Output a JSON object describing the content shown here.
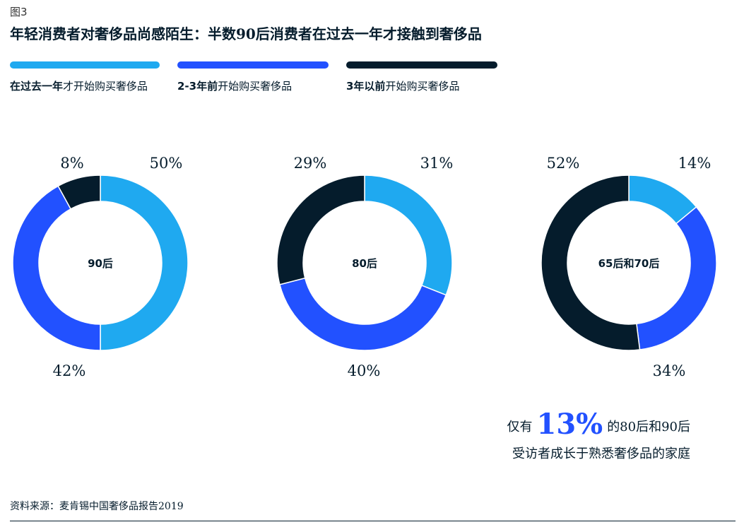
{
  "figure_label": "图3",
  "title": "年轻消费者对奢侈品尚感陌生：半数90后消费者在过去一年才接触到奢侈品",
  "legend": [
    {
      "bold": "在过去一年",
      "rest": "才开始购买奢侈品",
      "color": "#1fa9f0"
    },
    {
      "bold": "2-3年前",
      "rest": "开始购买奢侈品",
      "color": "#2251ff"
    },
    {
      "bold": "3年以前",
      "rest": "开始购买奢侈品",
      "color": "#051c2c"
    }
  ],
  "chart_data": [
    {
      "type": "pie",
      "center_label": "90后",
      "series": [
        {
          "name": "在过去一年才开始购买奢侈品",
          "value": 50,
          "label": "50%"
        },
        {
          "name": "2-3年前开始购买奢侈品",
          "value": 42,
          "label": "42%"
        },
        {
          "name": "3年以前开始购买奢侈品",
          "value": 8,
          "label": "8%"
        }
      ]
    },
    {
      "type": "pie",
      "center_label": "80后",
      "series": [
        {
          "name": "在过去一年才开始购买奢侈品",
          "value": 31,
          "label": "31%"
        },
        {
          "name": "2-3年前开始购买奢侈品",
          "value": 40,
          "label": "40%"
        },
        {
          "name": "3年以前开始购买奢侈品",
          "value": 29,
          "label": "29%"
        }
      ]
    },
    {
      "type": "pie",
      "center_label": "65后和70后",
      "series": [
        {
          "name": "在过去一年才开始购买奢侈品",
          "value": 14,
          "label": "14%"
        },
        {
          "name": "2-3年前开始购买奢侈品",
          "value": 34,
          "label": "34%"
        },
        {
          "name": "3年以前开始购买奢侈品",
          "value": 52,
          "label": "52%"
        }
      ]
    }
  ],
  "callout": {
    "prefix": "仅有",
    "big": "13%",
    "suffix": "的80后和90后",
    "line2": "受访者成长于熟悉奢侈品的家庭"
  },
  "source": "资料来源：麦肯锡中国奢侈品报告2019"
}
